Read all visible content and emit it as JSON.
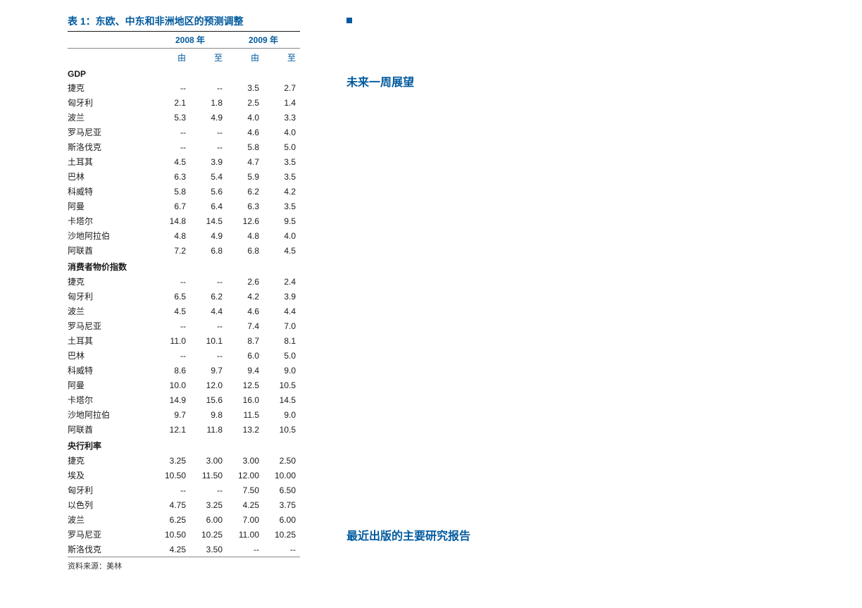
{
  "colors": {
    "heading_blue": "#005a9e",
    "text": "#1a1a1a",
    "rule_dark": "#1a1a1a",
    "rule_light": "#888888",
    "background": "#ffffff"
  },
  "fonts": {
    "title_size_pt": 14,
    "heading_size_pt": 16,
    "body_size_pt": 12,
    "source_size_pt": 11
  },
  "table": {
    "title": "表 1：东欧、中东和非洲地区的预测调整",
    "year1": "2008 年",
    "year2": "2009 年",
    "col_from": "由",
    "col_to": "至",
    "source": "资料来源：美林",
    "sections": [
      {
        "name": "GDP",
        "rows": [
          {
            "c": "捷克",
            "v": [
              "--",
              "--",
              "3.5",
              "2.7"
            ]
          },
          {
            "c": "匈牙利",
            "v": [
              "2.1",
              "1.8",
              "2.5",
              "1.4"
            ]
          },
          {
            "c": "波兰",
            "v": [
              "5.3",
              "4.9",
              "4.0",
              "3.3"
            ]
          },
          {
            "c": "罗马尼亚",
            "v": [
              "--",
              "--",
              "4.6",
              "4.0"
            ]
          },
          {
            "c": "斯洛伐克",
            "v": [
              "--",
              "--",
              "5.8",
              "5.0"
            ]
          },
          {
            "c": "土耳其",
            "v": [
              "4.5",
              "3.9",
              "4.7",
              "3.5"
            ]
          },
          {
            "c": "巴林",
            "v": [
              "6.3",
              "5.4",
              "5.9",
              "3.5"
            ]
          },
          {
            "c": "科威特",
            "v": [
              "5.8",
              "5.6",
              "6.2",
              "4.2"
            ]
          },
          {
            "c": "阿曼",
            "v": [
              "6.7",
              "6.4",
              "6.3",
              "3.5"
            ]
          },
          {
            "c": "卡塔尔",
            "v": [
              "14.8",
              "14.5",
              "12.6",
              "9.5"
            ]
          },
          {
            "c": "沙地阿拉伯",
            "v": [
              "4.8",
              "4.9",
              "4.8",
              "4.0"
            ]
          },
          {
            "c": "阿联酋",
            "v": [
              "7.2",
              "6.8",
              "6.8",
              "4.5"
            ]
          }
        ]
      },
      {
        "name": "消费者物价指数",
        "rows": [
          {
            "c": "捷克",
            "v": [
              "--",
              "--",
              "2.6",
              "2.4"
            ]
          },
          {
            "c": "匈牙利",
            "v": [
              "6.5",
              "6.2",
              "4.2",
              "3.9"
            ]
          },
          {
            "c": "波兰",
            "v": [
              "4.5",
              "4.4",
              "4.6",
              "4.4"
            ]
          },
          {
            "c": "罗马尼亚",
            "v": [
              "--",
              "--",
              "7.4",
              "7.0"
            ]
          },
          {
            "c": "土耳其",
            "v": [
              "11.0",
              "10.1",
              "8.7",
              "8.1"
            ]
          },
          {
            "c": "巴林",
            "v": [
              "--",
              "--",
              "6.0",
              "5.0"
            ]
          },
          {
            "c": "科威特",
            "v": [
              "8.6",
              "9.7",
              "9.4",
              "9.0"
            ]
          },
          {
            "c": "阿曼",
            "v": [
              "10.0",
              "12.0",
              "12.5",
              "10.5"
            ]
          },
          {
            "c": "卡塔尔",
            "v": [
              "14.9",
              "15.6",
              "16.0",
              "14.5"
            ]
          },
          {
            "c": "沙地阿拉伯",
            "v": [
              "9.7",
              "9.8",
              "11.5",
              "9.0"
            ]
          },
          {
            "c": "阿联酋",
            "v": [
              "12.1",
              "11.8",
              "13.2",
              "10.5"
            ]
          }
        ]
      },
      {
        "name": "央行利率",
        "rows": [
          {
            "c": "捷克",
            "v": [
              "3.25",
              "3.00",
              "3.00",
              "2.50"
            ]
          },
          {
            "c": "埃及",
            "v": [
              "10.50",
              "11.50",
              "12.00",
              "10.00"
            ]
          },
          {
            "c": "匈牙利",
            "v": [
              "--",
              "--",
              "7.50",
              "6.50"
            ]
          },
          {
            "c": "以色列",
            "v": [
              "4.75",
              "3.25",
              "4.25",
              "3.75"
            ]
          },
          {
            "c": "波兰",
            "v": [
              "6.25",
              "6.00",
              "7.00",
              "6.00"
            ]
          },
          {
            "c": "罗马尼亚",
            "v": [
              "10.50",
              "10.25",
              "11.00",
              "10.25"
            ]
          },
          {
            "c": "斯洛伐克",
            "v": [
              "4.25",
              "3.50",
              "--",
              "--"
            ]
          }
        ]
      }
    ]
  },
  "right": {
    "outlook_heading": "未来一周展望",
    "recent_heading": "最近出版的主要研究报告"
  }
}
